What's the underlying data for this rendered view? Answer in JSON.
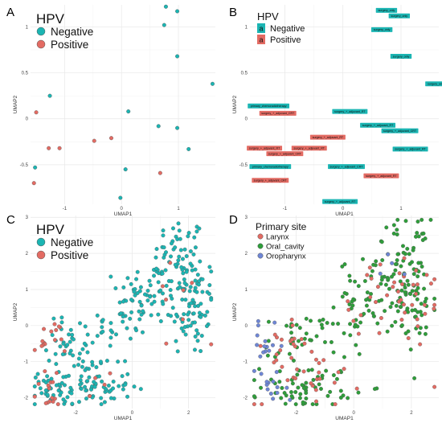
{
  "colors": {
    "negative": "#1bb5b3",
    "positive": "#e36b63",
    "larynx": "#e36b63",
    "oral_cavity": "#2e9e3a",
    "oropharynx": "#6e86d6",
    "grid": "#e8e8e8",
    "tag_text": "#111111"
  },
  "chart_data": [
    {
      "panel": "A",
      "type": "scatter",
      "xlabel": "UMAP1",
      "ylabel": "UMAP2",
      "xlim": [
        -1.6,
        1.65
      ],
      "ylim": [
        -0.93,
        1.24
      ],
      "xticks": [
        -1,
        0,
        1
      ],
      "yticks": [
        -0.5,
        0,
        0.5,
        1
      ],
      "legend": {
        "title": "HPV",
        "position": "top-left",
        "entries": [
          "Negative",
          "Positive"
        ]
      },
      "series": [
        {
          "key": "negative",
          "points": [
            [
              0.78,
              1.22
            ],
            [
              0.98,
              1.17
            ],
            [
              0.75,
              1.02
            ],
            [
              0.98,
              0.68
            ],
            [
              1.6,
              0.38
            ],
            [
              -1.26,
              0.25
            ],
            [
              0.12,
              0.08
            ],
            [
              0.65,
              -0.08
            ],
            [
              0.98,
              -0.1
            ],
            [
              1.18,
              -0.33
            ],
            [
              -1.52,
              -0.53
            ],
            [
              0.07,
              -0.55
            ],
            [
              -0.02,
              -0.86
            ]
          ]
        },
        {
          "key": "positive",
          "points": [
            [
              -1.5,
              0.07
            ],
            [
              -0.18,
              -0.21
            ],
            [
              -0.48,
              -0.24
            ],
            [
              -1.28,
              -0.32
            ],
            [
              -1.09,
              -0.32
            ],
            [
              0.68,
              -0.59
            ],
            [
              -1.54,
              -0.7
            ]
          ]
        }
      ]
    },
    {
      "panel": "B",
      "type": "scatter",
      "xlabel": "UMAP1",
      "ylabel": "UMAP2",
      "xlim": [
        -1.6,
        1.65
      ],
      "ylim": [
        -0.93,
        1.24
      ],
      "xticks": [
        -1,
        0,
        1
      ],
      "yticks": [
        -0.5,
        0,
        0.5,
        1
      ],
      "legend": {
        "title": "HPV",
        "position": "top-left",
        "glyph": "a",
        "entries": [
          "Negative",
          "Positive"
        ]
      },
      "labels": [
        {
          "key": "negative",
          "x": 0.75,
          "y": 1.18,
          "text": "surgery_only"
        },
        {
          "key": "negative",
          "x": 0.97,
          "y": 1.12,
          "text": "surgery_only"
        },
        {
          "key": "negative",
          "x": 0.67,
          "y": 0.97,
          "text": "surgery_only"
        },
        {
          "key": "negative",
          "x": 1.0,
          "y": 0.68,
          "text": "surgery_only"
        },
        {
          "key": "negative",
          "x": 1.6,
          "y": 0.38,
          "text": "surgery_only"
        },
        {
          "key": "negative",
          "x": -1.28,
          "y": 0.14,
          "text": "primary_chemoradiotherapy"
        },
        {
          "key": "negative",
          "x": 0.12,
          "y": 0.08,
          "text": "surgery_+_adjuvant_RT"
        },
        {
          "key": "negative",
          "x": 0.6,
          "y": -0.07,
          "text": "surgery_+_adjuvant_RT"
        },
        {
          "key": "negative",
          "x": 0.98,
          "y": -0.13,
          "text": "surgery_+_adjuvant_CRT"
        },
        {
          "key": "negative",
          "x": 1.16,
          "y": -0.33,
          "text": "surgery_+_adjuvant_RT"
        },
        {
          "key": "negative",
          "x": -1.25,
          "y": -0.52,
          "text": "primary_chemoradiotherapy"
        },
        {
          "key": "negative",
          "x": 0.06,
          "y": -0.52,
          "text": "surgery_+_adjuvant_CRT"
        },
        {
          "key": "negative",
          "x": -0.05,
          "y": -0.9,
          "text": "surgery_+_adjuvant_RT"
        },
        {
          "key": "positive",
          "x": -1.12,
          "y": 0.06,
          "text": "surgery_+_adjuvant_CRT"
        },
        {
          "key": "positive",
          "x": -0.26,
          "y": -0.2,
          "text": "surgery_+_adjuvant_RT"
        },
        {
          "key": "positive",
          "x": -0.58,
          "y": -0.32,
          "text": "surgery_+_adjuvant_RT"
        },
        {
          "key": "positive",
          "x": -1.35,
          "y": -0.32,
          "text": "surgery_+_adjuvant_RT"
        },
        {
          "key": "positive",
          "x": -1.0,
          "y": -0.38,
          "text": "surgery_+_adjuvant_CRT"
        },
        {
          "key": "positive",
          "x": 0.66,
          "y": -0.62,
          "text": "surgery_+_adjuvant_RT"
        },
        {
          "key": "positive",
          "x": -1.25,
          "y": -0.67,
          "text": "surgery_+_adjuvant_CRT"
        }
      ]
    },
    {
      "panel": "C",
      "type": "scatter",
      "xlabel": "UMAP1",
      "ylabel": "UMAP2",
      "xlim": [
        -3.6,
        2.95
      ],
      "ylim": [
        -2.3,
        3.05
      ],
      "xticks": [
        -2,
        0,
        2
      ],
      "yticks": [
        -2,
        -1,
        0,
        1,
        2,
        3
      ],
      "legend": {
        "title": "HPV",
        "position": "top-left",
        "entries": [
          "Negative",
          "Positive"
        ]
      },
      "clusters": [
        {
          "key": "negative",
          "cx": 1.7,
          "cy": 1.9,
          "sx": 0.45,
          "sy": 0.55,
          "n": 55
        },
        {
          "key": "negative",
          "cx": 2.1,
          "cy": 0.6,
          "sx": 0.45,
          "sy": 0.75,
          "n": 80
        },
        {
          "key": "negative",
          "cx": 0.6,
          "cy": 0.9,
          "sx": 0.55,
          "sy": 0.45,
          "n": 55
        },
        {
          "key": "negative",
          "cx": -0.4,
          "cy": 0.0,
          "sx": 0.45,
          "sy": 0.45,
          "n": 30
        },
        {
          "key": "negative",
          "cx": -1.6,
          "cy": -1.7,
          "sx": 0.8,
          "sy": 0.3,
          "n": 85
        },
        {
          "key": "negative",
          "cx": -2.1,
          "cy": -0.5,
          "sx": 0.45,
          "sy": 0.4,
          "n": 45
        },
        {
          "key": "negative",
          "cx": -2.9,
          "cy": -1.8,
          "sx": 0.35,
          "sy": 0.25,
          "n": 20
        },
        {
          "key": "positive",
          "cx": -2.95,
          "cy": -0.45,
          "sx": 0.3,
          "sy": 0.3,
          "n": 16
        },
        {
          "key": "positive",
          "cx": -3.05,
          "cy": -1.9,
          "sx": 0.35,
          "sy": 0.25,
          "n": 14
        },
        {
          "key": "positive",
          "cx": 1.8,
          "cy": 0.5,
          "sx": 0.6,
          "sy": 0.9,
          "n": 8
        },
        {
          "key": "positive",
          "cx": -1.3,
          "cy": -1.6,
          "sx": 0.5,
          "sy": 0.3,
          "n": 4
        }
      ]
    },
    {
      "panel": "D",
      "type": "scatter",
      "xlabel": "UMAP1",
      "ylabel": "UMAP2",
      "xlim": [
        -3.6,
        2.95
      ],
      "ylim": [
        -2.3,
        3.05
      ],
      "xticks": [
        -2,
        0,
        2
      ],
      "yticks": [
        -2,
        -1,
        0,
        1,
        2,
        3
      ],
      "legend": {
        "title": "Primary site",
        "position": "top-left",
        "entries": [
          "Larynx",
          "Oral_cavity",
          "Oropharynx"
        ]
      },
      "clusters": [
        {
          "key": "oral_cavity",
          "cx": 1.7,
          "cy": 1.9,
          "sx": 0.45,
          "sy": 0.55,
          "n": 50
        },
        {
          "key": "oral_cavity",
          "cx": 2.1,
          "cy": 0.6,
          "sx": 0.45,
          "sy": 0.75,
          "n": 60
        },
        {
          "key": "oral_cavity",
          "cx": 0.6,
          "cy": 0.9,
          "sx": 0.55,
          "sy": 0.45,
          "n": 45
        },
        {
          "key": "oral_cavity",
          "cx": -0.4,
          "cy": 0.0,
          "sx": 0.45,
          "sy": 0.45,
          "n": 22
        },
        {
          "key": "oral_cavity",
          "cx": -1.6,
          "cy": -1.7,
          "sx": 0.8,
          "sy": 0.3,
          "n": 65
        },
        {
          "key": "oral_cavity",
          "cx": -2.1,
          "cy": -0.5,
          "sx": 0.45,
          "sy": 0.4,
          "n": 30
        },
        {
          "key": "larynx",
          "cx": 2.0,
          "cy": 0.7,
          "sx": 0.6,
          "sy": 0.8,
          "n": 30
        },
        {
          "key": "larynx",
          "cx": 0.4,
          "cy": 0.6,
          "sx": 0.7,
          "sy": 0.5,
          "n": 14
        },
        {
          "key": "larynx",
          "cx": -1.6,
          "cy": -1.3,
          "sx": 0.9,
          "sy": 0.5,
          "n": 28
        },
        {
          "key": "larynx",
          "cx": -2.3,
          "cy": -0.4,
          "sx": 0.4,
          "sy": 0.35,
          "n": 14
        },
        {
          "key": "oropharynx",
          "cx": -3.0,
          "cy": -0.6,
          "sx": 0.3,
          "sy": 0.3,
          "n": 16
        },
        {
          "key": "oropharynx",
          "cx": -3.0,
          "cy": -1.9,
          "sx": 0.35,
          "sy": 0.25,
          "n": 12
        },
        {
          "key": "oropharynx",
          "cx": 1.5,
          "cy": 1.4,
          "sx": 0.4,
          "sy": 0.4,
          "n": 4
        }
      ]
    }
  ]
}
